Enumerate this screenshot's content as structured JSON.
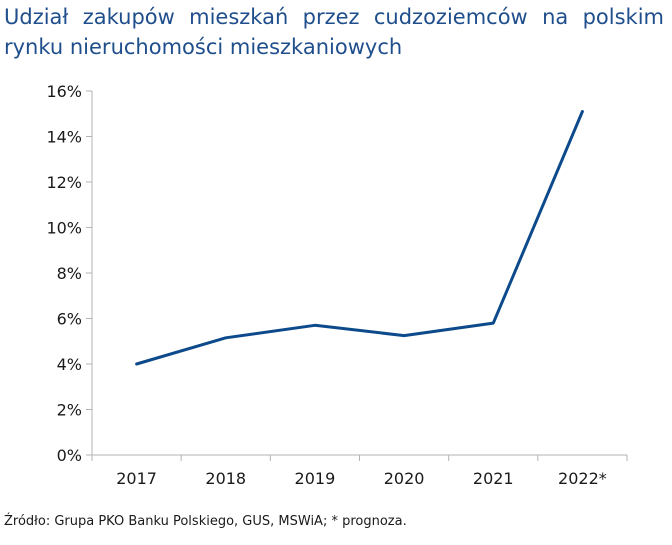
{
  "title": "Udział zakupów mieszkań przez cudzoziemców na polskim rynku nieruchomości mieszkaniowych",
  "source": "Źródło: Grupa PKO Banku Polskiego, GUS, MSWiA; * prognoza.",
  "colors": {
    "title": "#1f4e8c",
    "line": "#0d4a8b",
    "axis": "#b3b3b3"
  },
  "chart_data": {
    "type": "line",
    "title": "Udział zakupów mieszkań przez cudzoziemców na polskim rynku nieruchomości mieszkaniowych",
    "xlabel": "",
    "ylabel": "",
    "categories": [
      "2017",
      "2018",
      "2019",
      "2020",
      "2021",
      "2022*"
    ],
    "series": [
      {
        "values": [
          4.0,
          5.15,
          5.7,
          5.25,
          5.8,
          15.1
        ]
      }
    ],
    "ylim": [
      0,
      16
    ],
    "yticks": [
      0,
      2,
      4,
      6,
      8,
      10,
      12,
      14,
      16
    ],
    "ytick_labels": [
      "0%",
      "2%",
      "4%",
      "6%",
      "8%",
      "10%",
      "12%",
      "14%",
      "16%"
    ],
    "grid": false,
    "legend": "none"
  }
}
